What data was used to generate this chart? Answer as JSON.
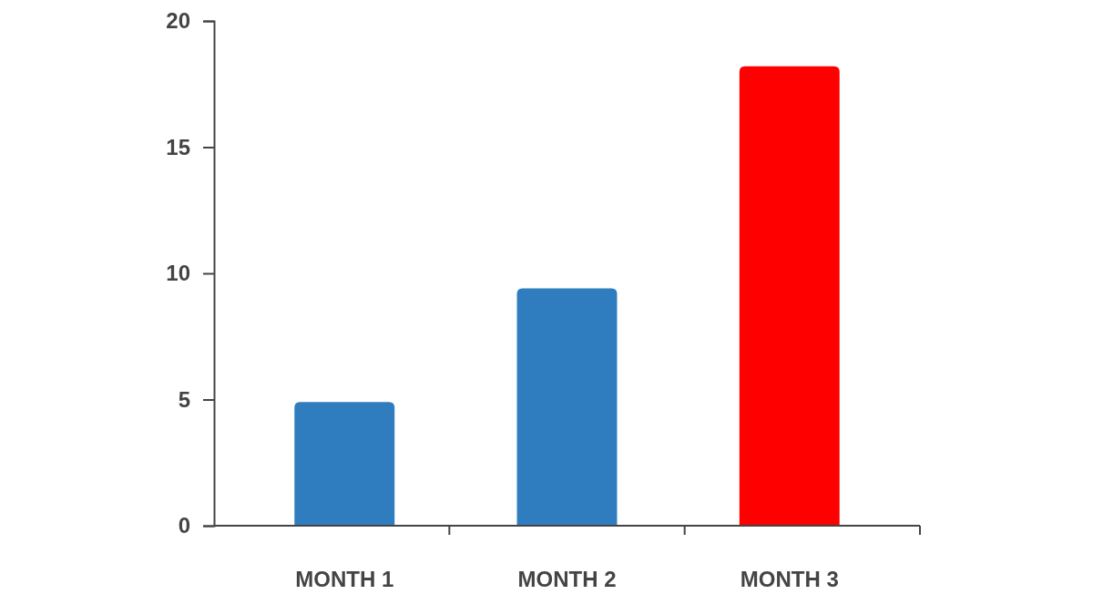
{
  "chart_data": {
    "type": "bar",
    "categories": [
      "MONTH 1",
      "MONTH 2",
      "MONTH 3"
    ],
    "values": [
      4.9,
      9.4,
      18.2
    ],
    "colors": [
      "#2f7dbf",
      "#2f7dbf",
      "#ff0000"
    ],
    "ylim": [
      0,
      20
    ],
    "yticks": [
      0,
      5,
      10,
      15,
      20
    ],
    "grid": false
  }
}
